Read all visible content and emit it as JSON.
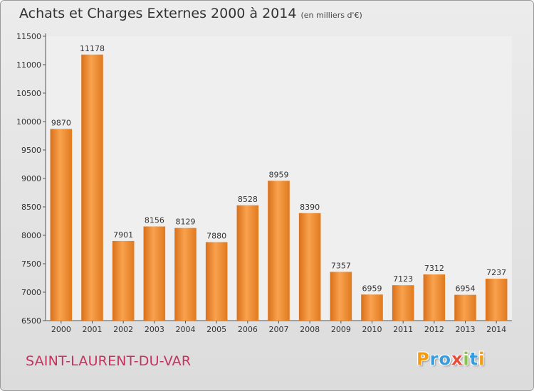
{
  "chart_data": {
    "type": "bar",
    "title": "Achats et Charges Externes 2000 à 2014",
    "subtitle": "(en milliers d'€)",
    "categories": [
      "2000",
      "2001",
      "2002",
      "2003",
      "2004",
      "2005",
      "2006",
      "2007",
      "2008",
      "2009",
      "2010",
      "2011",
      "2012",
      "2013",
      "2014"
    ],
    "values": [
      9870,
      11178,
      7901,
      8156,
      8129,
      7880,
      8528,
      8959,
      8390,
      7357,
      6959,
      7123,
      7312,
      6954,
      7237
    ],
    "ylim": [
      6500,
      11500
    ],
    "yticks": [
      6500,
      7000,
      7500,
      8000,
      8500,
      9000,
      9500,
      10000,
      10500,
      11000,
      11500
    ],
    "xlabel": "",
    "ylabel": "",
    "grid": false,
    "bar_color": "#f08c2a"
  },
  "footer": {
    "commune": "SAINT-LAURENT-DU-VAR",
    "logo_letters": [
      {
        "ch": "P",
        "color": "#f39c12"
      },
      {
        "ch": "r",
        "color": "#3a9bdc"
      },
      {
        "ch": "o",
        "color": "#3a9bdc"
      },
      {
        "ch": "x",
        "color": "#e74c3c"
      },
      {
        "ch": "i",
        "color": "#8bc34a"
      },
      {
        "ch": "t",
        "color": "#3a9bdc"
      },
      {
        "ch": "i",
        "color": "#f39c12"
      }
    ]
  }
}
